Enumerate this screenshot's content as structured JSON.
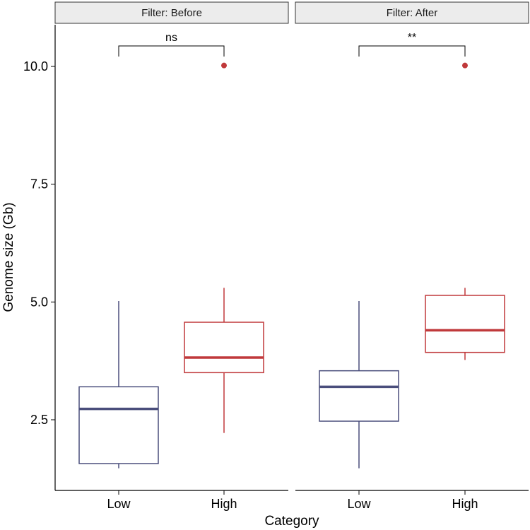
{
  "chart_data": {
    "type": "boxplot",
    "xlabel": "Category",
    "ylabel": "Genome size (Gb)",
    "ylim": [
      1.0,
      11.0
    ],
    "y_ticks": [
      {
        "value": 2.5,
        "label": "2.5"
      },
      {
        "value": 5.0,
        "label": "5.0"
      },
      {
        "value": 7.5,
        "label": "7.5"
      },
      {
        "value": 10.0,
        "label": "10.0"
      }
    ],
    "categories": [
      "Low",
      "High"
    ],
    "colors": {
      "Low": "#4a4e7c",
      "High": "#c0393b"
    },
    "panels": [
      {
        "title": "Filter: Before",
        "significance": "ns",
        "boxes": [
          {
            "category": "Low",
            "whisker_low": 1.47,
            "q1": 1.57,
            "median": 2.73,
            "q3": 3.2,
            "whisker_high": 5.02,
            "outliers": []
          },
          {
            "category": "High",
            "whisker_low": 2.22,
            "q1": 3.5,
            "median": 3.82,
            "q3": 4.57,
            "whisker_high": 5.3,
            "outliers": [
              10.02
            ]
          }
        ]
      },
      {
        "title": "Filter: After",
        "significance": "**",
        "boxes": [
          {
            "category": "Low",
            "whisker_low": 1.47,
            "q1": 2.47,
            "median": 3.2,
            "q3": 3.54,
            "whisker_high": 5.02,
            "outliers": []
          },
          {
            "category": "High",
            "whisker_low": 3.77,
            "q1": 3.93,
            "median": 4.4,
            "q3": 5.14,
            "whisker_high": 5.3,
            "outliers": [
              10.02
            ]
          }
        ]
      }
    ]
  }
}
